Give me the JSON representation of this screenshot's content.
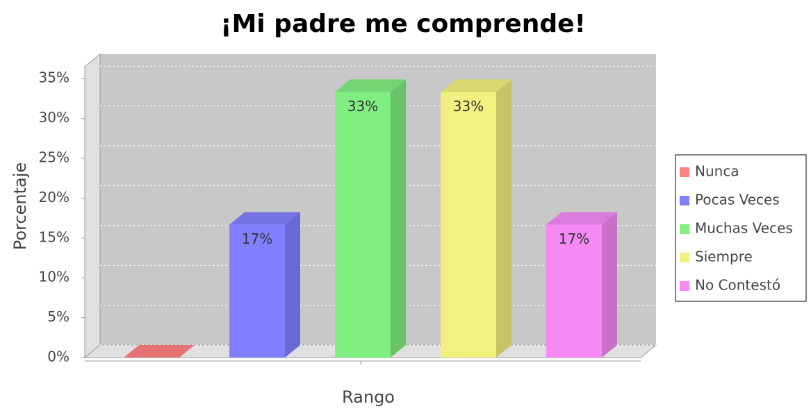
{
  "chart_data": {
    "type": "bar3d",
    "title": "¡Mi padre me comprende!",
    "x_label": "Rango",
    "y_label": "Porcentaje",
    "categories": [
      null
    ],
    "series": [
      {
        "name": "Nunca",
        "color": "#ff8080",
        "values": [
          0
        ],
        "value_labels": [
          null
        ]
      },
      {
        "name": "Pocas Veces",
        "color": "#8080ff",
        "values": [
          16.67
        ],
        "value_labels": [
          "17%"
        ]
      },
      {
        "name": "Muchas Veces",
        "color": "#80ee80",
        "values": [
          33.33
        ],
        "value_labels": [
          "33%"
        ]
      },
      {
        "name": "Siempre",
        "color": "#f2f07e",
        "values": [
          33.33
        ],
        "value_labels": [
          "33%"
        ]
      },
      {
        "name": "No Contestó",
        "color": "#f58af5",
        "values": [
          16.67
        ],
        "value_labels": [
          "17%"
        ]
      }
    ],
    "ylim": [
      0,
      36.5
    ],
    "yticks": [
      {
        "value": 0,
        "label": "0%"
      },
      {
        "value": 5,
        "label": "5%"
      },
      {
        "value": 10,
        "label": "10%"
      },
      {
        "value": 15,
        "label": "15%"
      },
      {
        "value": 20,
        "label": "20%"
      },
      {
        "value": 25,
        "label": "25%"
      },
      {
        "value": 30,
        "label": "30%"
      },
      {
        "value": 35,
        "label": "35%"
      }
    ],
    "grid": true,
    "legend": "right"
  }
}
